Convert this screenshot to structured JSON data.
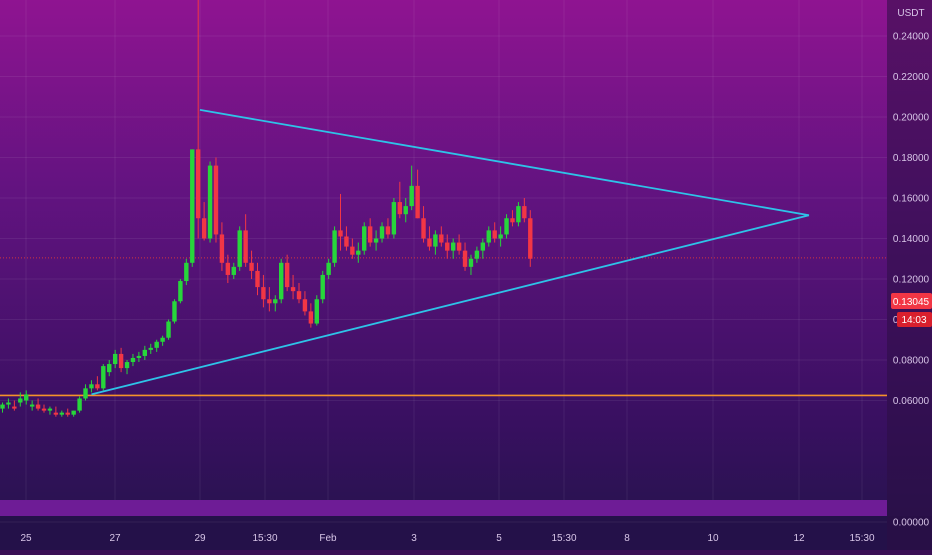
{
  "chart_data": {
    "type": "candlestick",
    "currency_label": "USDT",
    "ylim": [
      -0.002,
      0.248
    ],
    "y_ticks": [
      "0.24000",
      "0.22000",
      "0.20000",
      "0.18000",
      "0.16000",
      "0.14000",
      "0.12000",
      "0.10000",
      "0.08000",
      "0.06000",
      "0.00000"
    ],
    "x_ticks": [
      "25",
      "27",
      "29",
      "15:30",
      "Feb",
      "3",
      "5",
      "15:30",
      "8",
      "10",
      "12",
      "15:30"
    ],
    "current_price": "0.13045",
    "countdown": "14:03",
    "candles": [
      [
        0.056,
        0.059,
        0.054,
        0.058
      ],
      [
        0.058,
        0.061,
        0.056,
        0.059
      ],
      [
        0.057,
        0.06,
        0.055,
        0.056
      ],
      [
        0.059,
        0.064,
        0.057,
        0.061
      ],
      [
        0.06,
        0.065,
        0.058,
        0.063
      ],
      [
        0.057,
        0.06,
        0.055,
        0.058
      ],
      [
        0.058,
        0.061,
        0.055,
        0.056
      ],
      [
        0.056,
        0.058,
        0.054,
        0.055
      ],
      [
        0.055,
        0.057,
        0.053,
        0.056
      ],
      [
        0.054,
        0.057,
        0.052,
        0.053
      ],
      [
        0.053,
        0.055,
        0.052,
        0.054
      ],
      [
        0.054,
        0.056,
        0.052,
        0.053
      ],
      [
        0.053,
        0.055,
        0.052,
        0.055
      ],
      [
        0.055,
        0.062,
        0.054,
        0.061
      ],
      [
        0.061,
        0.068,
        0.06,
        0.066
      ],
      [
        0.066,
        0.07,
        0.064,
        0.068
      ],
      [
        0.068,
        0.072,
        0.065,
        0.066
      ],
      [
        0.066,
        0.078,
        0.065,
        0.077
      ],
      [
        0.074,
        0.08,
        0.072,
        0.078
      ],
      [
        0.078,
        0.085,
        0.076,
        0.083
      ],
      [
        0.083,
        0.086,
        0.074,
        0.076
      ],
      [
        0.076,
        0.08,
        0.073,
        0.079
      ],
      [
        0.079,
        0.083,
        0.077,
        0.081
      ],
      [
        0.081,
        0.084,
        0.079,
        0.082
      ],
      [
        0.082,
        0.087,
        0.08,
        0.085
      ],
      [
        0.085,
        0.088,
        0.083,
        0.086
      ],
      [
        0.086,
        0.09,
        0.084,
        0.089
      ],
      [
        0.089,
        0.092,
        0.087,
        0.091
      ],
      [
        0.091,
        0.1,
        0.09,
        0.099
      ],
      [
        0.099,
        0.11,
        0.098,
        0.109
      ],
      [
        0.109,
        0.12,
        0.108,
        0.119
      ],
      [
        0.119,
        0.13,
        0.117,
        0.128
      ],
      [
        0.128,
        0.184,
        0.126,
        0.184
      ],
      [
        0.184,
        0.262,
        0.14,
        0.15
      ],
      [
        0.15,
        0.158,
        0.139,
        0.14
      ],
      [
        0.14,
        0.178,
        0.138,
        0.176
      ],
      [
        0.176,
        0.18,
        0.138,
        0.142
      ],
      [
        0.142,
        0.148,
        0.124,
        0.128
      ],
      [
        0.128,
        0.132,
        0.118,
        0.122
      ],
      [
        0.122,
        0.128,
        0.12,
        0.126
      ],
      [
        0.126,
        0.146,
        0.124,
        0.144
      ],
      [
        0.144,
        0.152,
        0.126,
        0.128
      ],
      [
        0.128,
        0.134,
        0.12,
        0.124
      ],
      [
        0.124,
        0.128,
        0.112,
        0.116
      ],
      [
        0.116,
        0.122,
        0.106,
        0.11
      ],
      [
        0.11,
        0.116,
        0.104,
        0.108
      ],
      [
        0.108,
        0.112,
        0.104,
        0.11
      ],
      [
        0.11,
        0.13,
        0.108,
        0.128
      ],
      [
        0.128,
        0.132,
        0.114,
        0.116
      ],
      [
        0.116,
        0.122,
        0.11,
        0.114
      ],
      [
        0.114,
        0.118,
        0.108,
        0.11
      ],
      [
        0.11,
        0.114,
        0.102,
        0.104
      ],
      [
        0.104,
        0.108,
        0.096,
        0.098
      ],
      [
        0.098,
        0.112,
        0.097,
        0.11
      ],
      [
        0.11,
        0.124,
        0.108,
        0.122
      ],
      [
        0.122,
        0.13,
        0.12,
        0.128
      ],
      [
        0.128,
        0.146,
        0.126,
        0.144
      ],
      [
        0.144,
        0.162,
        0.134,
        0.141
      ],
      [
        0.141,
        0.146,
        0.134,
        0.136
      ],
      [
        0.136,
        0.14,
        0.13,
        0.132
      ],
      [
        0.132,
        0.138,
        0.128,
        0.134
      ],
      [
        0.134,
        0.148,
        0.132,
        0.146
      ],
      [
        0.146,
        0.15,
        0.136,
        0.138
      ],
      [
        0.138,
        0.144,
        0.134,
        0.14
      ],
      [
        0.14,
        0.148,
        0.138,
        0.146
      ],
      [
        0.146,
        0.15,
        0.14,
        0.142
      ],
      [
        0.142,
        0.16,
        0.14,
        0.158
      ],
      [
        0.158,
        0.168,
        0.15,
        0.152
      ],
      [
        0.152,
        0.16,
        0.148,
        0.156
      ],
      [
        0.156,
        0.176,
        0.154,
        0.166
      ],
      [
        0.166,
        0.174,
        0.15,
        0.15
      ],
      [
        0.15,
        0.156,
        0.138,
        0.14
      ],
      [
        0.14,
        0.146,
        0.134,
        0.136
      ],
      [
        0.136,
        0.144,
        0.132,
        0.142
      ],
      [
        0.142,
        0.146,
        0.136,
        0.138
      ],
      [
        0.138,
        0.142,
        0.13,
        0.134
      ],
      [
        0.134,
        0.14,
        0.13,
        0.138
      ],
      [
        0.138,
        0.142,
        0.132,
        0.134
      ],
      [
        0.134,
        0.138,
        0.124,
        0.126
      ],
      [
        0.126,
        0.132,
        0.122,
        0.13
      ],
      [
        0.13,
        0.136,
        0.128,
        0.134
      ],
      [
        0.134,
        0.14,
        0.13,
        0.138
      ],
      [
        0.138,
        0.146,
        0.136,
        0.144
      ],
      [
        0.144,
        0.148,
        0.138,
        0.14
      ],
      [
        0.14,
        0.146,
        0.136,
        0.142
      ],
      [
        0.142,
        0.152,
        0.14,
        0.15
      ],
      [
        0.15,
        0.154,
        0.146,
        0.148
      ],
      [
        0.148,
        0.158,
        0.146,
        0.156
      ],
      [
        0.156,
        0.16,
        0.148,
        0.15
      ],
      [
        0.15,
        0.154,
        0.126,
        0.13
      ]
    ],
    "annotations": [
      {
        "type": "line",
        "from": [
          33.3,
          0.2035
        ],
        "to": [
          136,
          0.1515
        ],
        "color": "#2ec3e8"
      },
      {
        "type": "line",
        "from": [
          15,
          0.063
        ],
        "to": [
          136,
          0.1515
        ],
        "color": "#2ec3e8"
      },
      {
        "type": "hline",
        "y": 0.0625,
        "color": "#f5922a"
      },
      {
        "type": "hline",
        "y": 0.13045,
        "color": "#e03a3a",
        "dotted": true
      }
    ],
    "colors": {
      "up": "#27d63b",
      "down": "#f23645",
      "background_top": "#8f1491",
      "background_bottom": "#23134a"
    }
  }
}
